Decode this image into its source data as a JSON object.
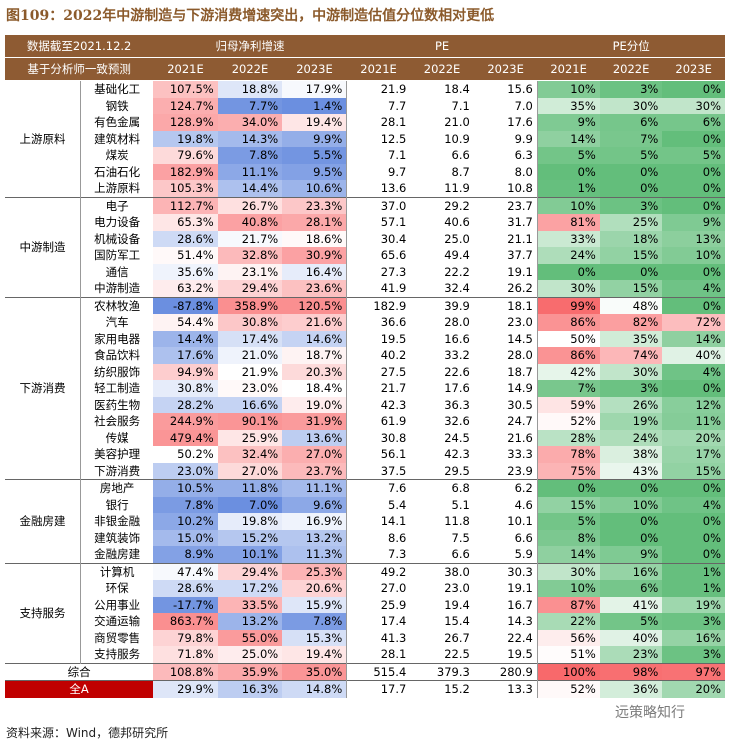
{
  "title": "图109：2022年中游制造与下游消费增速突出，中游制造估值分位数相对更低",
  "header": {
    "note1": "数据截至2021.12.2",
    "note2": "基于分析师一致预测",
    "groups": [
      "归母净利增速",
      "PE",
      "PE分位"
    ],
    "years": [
      "2021E",
      "2022E",
      "2023E"
    ]
  },
  "groups": [
    {
      "name": "上游原料",
      "rows": [
        {
          "name": "基础化工",
          "values": [
            "107.5%",
            "18.8%",
            "17.9%",
            "21.9",
            "18.4",
            "15.6",
            "10%",
            "3%",
            "0%"
          ]
        },
        {
          "name": "钢铁",
          "values": [
            "124.7%",
            "7.7%",
            "1.4%",
            "7.7",
            "7.1",
            "7.0",
            "35%",
            "30%",
            "30%"
          ]
        },
        {
          "name": "有色金属",
          "values": [
            "128.9%",
            "34.0%",
            "19.4%",
            "28.1",
            "21.0",
            "17.6",
            "9%",
            "6%",
            "6%"
          ]
        },
        {
          "name": "建筑材料",
          "values": [
            "19.8%",
            "14.3%",
            "9.9%",
            "12.5",
            "10.9",
            "9.9",
            "14%",
            "7%",
            "0%"
          ]
        },
        {
          "name": "煤炭",
          "values": [
            "79.6%",
            "7.8%",
            "5.5%",
            "7.1",
            "6.6",
            "6.3",
            "5%",
            "5%",
            "5%"
          ]
        },
        {
          "name": "石油石化",
          "values": [
            "182.9%",
            "11.1%",
            "9.5%",
            "9.7",
            "8.7",
            "8.0",
            "0%",
            "0%",
            "0%"
          ]
        },
        {
          "name": "上游原料",
          "values": [
            "105.3%",
            "14.4%",
            "10.6%",
            "13.6",
            "11.9",
            "10.8",
            "1%",
            "0%",
            "0%"
          ]
        }
      ]
    },
    {
      "name": "中游制造",
      "rows": [
        {
          "name": "电子",
          "values": [
            "112.7%",
            "26.7%",
            "23.3%",
            "37.0",
            "29.2",
            "23.7",
            "10%",
            "3%",
            "0%"
          ]
        },
        {
          "name": "电力设备",
          "values": [
            "65.3%",
            "40.8%",
            "28.1%",
            "57.1",
            "40.6",
            "31.7",
            "81%",
            "25%",
            "9%"
          ]
        },
        {
          "name": "机械设备",
          "values": [
            "28.6%",
            "21.7%",
            "18.6%",
            "30.4",
            "25.0",
            "21.1",
            "33%",
            "18%",
            "13%"
          ]
        },
        {
          "name": "国防军工",
          "values": [
            "51.4%",
            "32.8%",
            "30.9%",
            "65.6",
            "49.4",
            "37.7",
            "24%",
            "15%",
            "10%"
          ]
        },
        {
          "name": "通信",
          "values": [
            "35.6%",
            "23.1%",
            "16.4%",
            "27.3",
            "22.2",
            "19.1",
            "0%",
            "0%",
            "0%"
          ]
        },
        {
          "name": "中游制造",
          "values": [
            "63.2%",
            "29.4%",
            "23.6%",
            "41.9",
            "32.4",
            "26.2",
            "30%",
            "15%",
            "4%"
          ]
        }
      ]
    },
    {
      "name": "下游消费",
      "rows": [
        {
          "name": "农林牧渔",
          "values": [
            "-87.8%",
            "358.9%",
            "120.5%",
            "182.9",
            "39.9",
            "18.1",
            "99%",
            "48%",
            "0%"
          ]
        },
        {
          "name": "汽车",
          "values": [
            "54.4%",
            "30.8%",
            "21.6%",
            "36.6",
            "28.0",
            "23.0",
            "86%",
            "82%",
            "72%"
          ]
        },
        {
          "name": "家用电器",
          "values": [
            "14.4%",
            "17.4%",
            "14.6%",
            "19.5",
            "16.6",
            "14.5",
            "50%",
            "35%",
            "14%"
          ]
        },
        {
          "name": "食品饮料",
          "values": [
            "17.6%",
            "21.0%",
            "18.7%",
            "40.2",
            "33.2",
            "28.0",
            "86%",
            "74%",
            "40%"
          ]
        },
        {
          "name": "纺织服饰",
          "values": [
            "94.9%",
            "21.9%",
            "20.3%",
            "27.5",
            "22.6",
            "18.7",
            "42%",
            "30%",
            "4%"
          ]
        },
        {
          "name": "轻工制造",
          "values": [
            "30.8%",
            "23.0%",
            "18.4%",
            "21.7",
            "17.6",
            "14.9",
            "7%",
            "3%",
            "0%"
          ]
        },
        {
          "name": "医药生物",
          "values": [
            "28.2%",
            "16.6%",
            "19.0%",
            "42.3",
            "36.3",
            "30.5",
            "59%",
            "26%",
            "12%"
          ]
        },
        {
          "name": "社会服务",
          "values": [
            "244.9%",
            "90.1%",
            "31.9%",
            "61.9",
            "32.6",
            "24.7",
            "52%",
            "19%",
            "11%"
          ]
        },
        {
          "name": "传媒",
          "values": [
            "479.4%",
            "25.9%",
            "13.6%",
            "30.8",
            "24.5",
            "21.6",
            "28%",
            "24%",
            "20%"
          ]
        },
        {
          "name": "美容护理",
          "values": [
            "50.2%",
            "32.4%",
            "27.0%",
            "56.1",
            "42.3",
            "33.3",
            "78%",
            "38%",
            "17%"
          ]
        },
        {
          "name": "下游消费",
          "values": [
            "23.0%",
            "27.0%",
            "23.7%",
            "37.5",
            "29.5",
            "23.9",
            "75%",
            "43%",
            "15%"
          ]
        }
      ]
    },
    {
      "name": "金融房建",
      "rows": [
        {
          "name": "房地产",
          "values": [
            "10.5%",
            "11.8%",
            "11.1%",
            "7.6",
            "6.8",
            "6.2",
            "0%",
            "0%",
            "0%"
          ]
        },
        {
          "name": "银行",
          "values": [
            "7.8%",
            "7.0%",
            "9.6%",
            "5.4",
            "5.1",
            "4.6",
            "15%",
            "10%",
            "4%"
          ]
        },
        {
          "name": "非银金融",
          "values": [
            "10.2%",
            "19.8%",
            "16.9%",
            "14.1",
            "11.8",
            "10.1",
            "5%",
            "0%",
            "0%"
          ]
        },
        {
          "name": "建筑装饰",
          "values": [
            "15.0%",
            "15.2%",
            "13.2%",
            "8.6",
            "7.5",
            "6.6",
            "8%",
            "0%",
            "0%"
          ]
        },
        {
          "name": "金融房建",
          "values": [
            "8.9%",
            "10.1%",
            "11.3%",
            "7.3",
            "6.6",
            "5.9",
            "14%",
            "9%",
            "0%"
          ]
        }
      ]
    },
    {
      "name": "支持服务",
      "rows": [
        {
          "name": "计算机",
          "values": [
            "47.4%",
            "29.4%",
            "25.3%",
            "49.2",
            "38.0",
            "30.3",
            "30%",
            "16%",
            "1%"
          ]
        },
        {
          "name": "环保",
          "values": [
            "28.6%",
            "17.2%",
            "20.6%",
            "27.0",
            "23.0",
            "19.1",
            "10%",
            "6%",
            "1%"
          ]
        },
        {
          "name": "公用事业",
          "values": [
            "-17.7%",
            "33.5%",
            "15.9%",
            "25.9",
            "19.4",
            "16.7",
            "87%",
            "41%",
            "19%"
          ]
        },
        {
          "name": "交通运输",
          "values": [
            "863.7%",
            "13.2%",
            "7.8%",
            "17.4",
            "15.4",
            "14.3",
            "22%",
            "5%",
            "3%"
          ]
        },
        {
          "name": "商贸零售",
          "values": [
            "79.8%",
            "55.0%",
            "15.3%",
            "41.3",
            "26.7",
            "22.4",
            "56%",
            "40%",
            "16%"
          ]
        },
        {
          "name": "支持服务",
          "values": [
            "71.8%",
            "25.0%",
            "19.4%",
            "28.1",
            "22.5",
            "19.5",
            "51%",
            "23%",
            "3%"
          ]
        }
      ]
    }
  ],
  "totals": [
    {
      "name": "综合",
      "values": [
        "108.8%",
        "35.9%",
        "35.0%",
        "515.4",
        "379.3",
        "280.9",
        "100%",
        "98%",
        "97%"
      ]
    },
    {
      "name": "全A",
      "values": [
        "29.9%",
        "16.3%",
        "14.8%",
        "17.7",
        "15.2",
        "13.3",
        "52%",
        "36%",
        "20%"
      ]
    }
  ],
  "source": "资料来源：Wind，德邦研究所",
  "watermark": "远策略知行"
}
